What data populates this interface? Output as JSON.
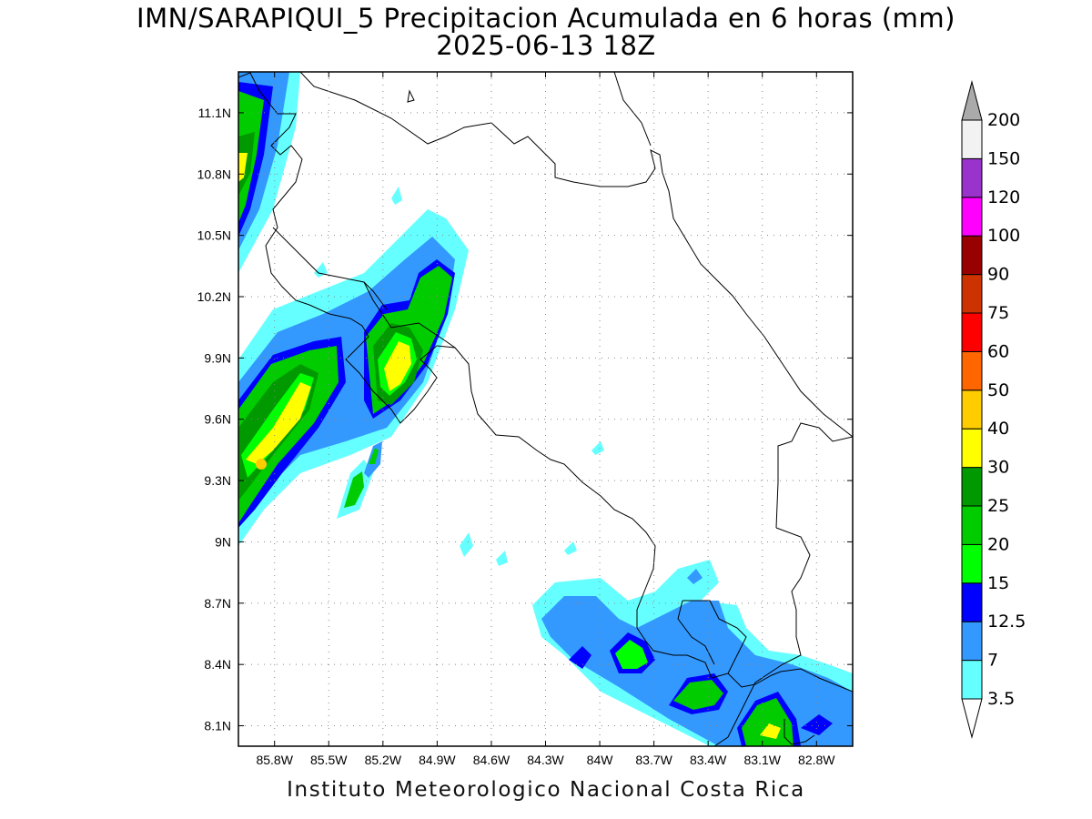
{
  "title": {
    "line1": "IMN/SARAPIQUI_5 Precipitacion Acumulada en 6 horas (mm)",
    "line2": "2025-06-13 18Z"
  },
  "footer": "Instituto Meteorologico Nacional Costa Rica",
  "map": {
    "lon_range": [
      -86.0,
      -82.6
    ],
    "lat_range": [
      8.0,
      11.3
    ],
    "lon_ticks": [
      "85.8W",
      "85.5W",
      "85.2W",
      "84.9W",
      "84.6W",
      "84.3W",
      "84W",
      "83.7W",
      "83.4W",
      "83.1W",
      "82.8W"
    ],
    "lat_ticks": [
      "11.1N",
      "10.8N",
      "10.5N",
      "10.2N",
      "9.9N",
      "9.6N",
      "9.3N",
      "9N",
      "8.7N",
      "8.4N",
      "8.1N"
    ],
    "grid": "dotted"
  },
  "colorbar": {
    "levels": [
      "3.5",
      "7",
      "12.5",
      "15",
      "20",
      "25",
      "30",
      "40",
      "50",
      "60",
      "75",
      "90",
      "100",
      "120",
      "150",
      "200"
    ],
    "colors": [
      "#66ffff",
      "#3399ff",
      "#0000ff",
      "#00ff00",
      "#00cc00",
      "#009900",
      "#ffff00",
      "#ffcc00",
      "#ff6600",
      "#ff0000",
      "#cc3300",
      "#990000",
      "#ff00ff",
      "#9933cc",
      "#f2f2f2",
      "#aaaaaa"
    ]
  }
}
